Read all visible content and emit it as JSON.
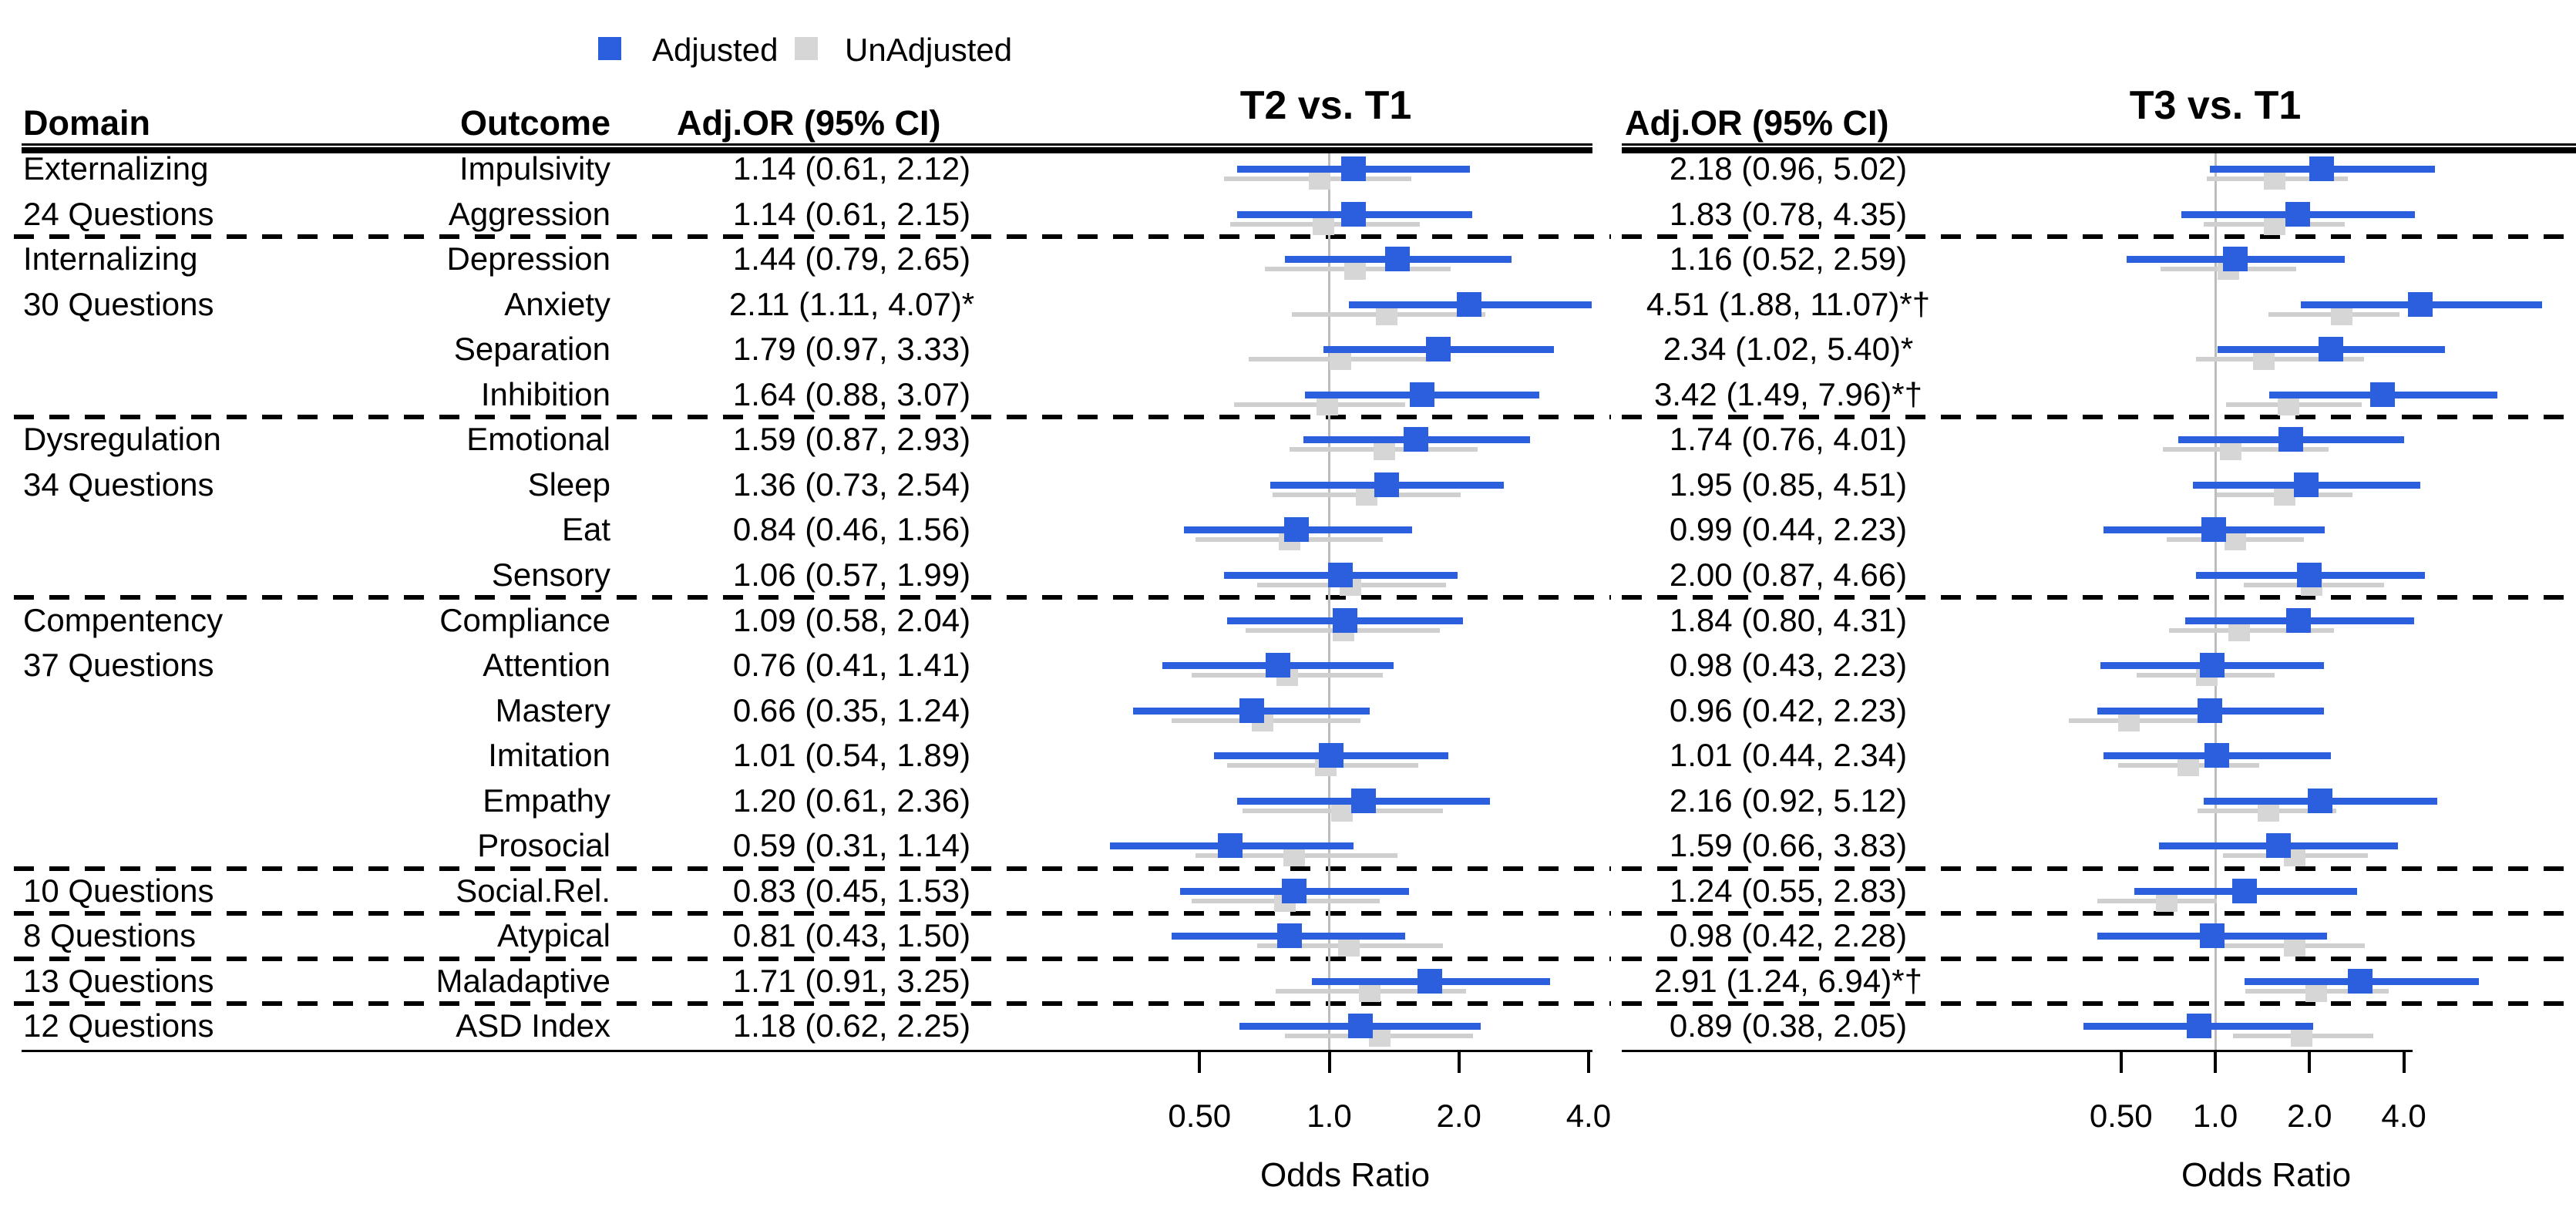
{
  "figure": {
    "legend": [
      {
        "name": "adjusted",
        "label": "Adjusted",
        "color": "#2b5fde"
      },
      {
        "name": "unadjusted",
        "label": "UnAdjusted",
        "color": "#d6d6d6"
      }
    ],
    "headers": {
      "domain": "Domain",
      "outcome": "Outcome",
      "or_left": "Adj.OR (95% CI)",
      "or_right": "Adj.OR (95% CI)",
      "panel_t2": "T2 vs. T1",
      "panel_t3": "T3 vs. T1"
    }
  },
  "chart_data": {
    "type": "forest",
    "scale": "log2",
    "axis": {
      "label": "Odds Ratio",
      "ticks": [
        0.5,
        1.0,
        2.0,
        4.0
      ],
      "tick_labels": [
        "0.50",
        "1.0",
        "2.0",
        "4.0"
      ],
      "reference_line": 1.0
    },
    "panels": [
      {
        "id": "t2",
        "title": "T2 vs. T1"
      },
      {
        "id": "t3",
        "title": "T3 vs. T1"
      }
    ],
    "series": [
      {
        "name": "Adjusted",
        "color": "#2b5fde"
      },
      {
        "name": "UnAdjusted",
        "color": "#d6d6d6",
        "note": "values estimated from marker positions; not labeled in figure"
      }
    ],
    "colors": {
      "adjusted": "#2b5fde",
      "unadjusted_square": "#d6d6d6",
      "unadjusted_line": "#cfcfcf",
      "reference_line": "#bdbdbd"
    },
    "rows": [
      {
        "domain": "Externalizing",
        "outcome": "Impulsivity",
        "separator_after": false,
        "t2": {
          "label": "1.14 (0.61, 2.12)",
          "adjusted": {
            "or": 1.14,
            "lo": 0.61,
            "hi": 2.12
          },
          "unadjusted_est": {
            "or": 0.95,
            "lo": 0.57,
            "hi": 1.55
          }
        },
        "t3": {
          "label": "2.18 (0.96, 5.02)",
          "adjusted": {
            "or": 2.18,
            "lo": 0.96,
            "hi": 5.02
          },
          "unadjusted_est": {
            "or": 1.55,
            "lo": 0.94,
            "hi": 2.65
          }
        }
      },
      {
        "domain": "24 Questions",
        "outcome": "Aggression",
        "separator_after": true,
        "t2": {
          "label": "1.14 (0.61, 2.15)",
          "adjusted": {
            "or": 1.14,
            "lo": 0.61,
            "hi": 2.15
          },
          "unadjusted_est": {
            "or": 0.97,
            "lo": 0.59,
            "hi": 1.62
          }
        },
        "t3": {
          "label": "1.83 (0.78, 4.35)",
          "adjusted": {
            "or": 1.83,
            "lo": 0.78,
            "hi": 4.35
          },
          "unadjusted_est": {
            "or": 1.55,
            "lo": 0.92,
            "hi": 2.59
          }
        }
      },
      {
        "domain": "Internalizing",
        "outcome": "Depression",
        "separator_after": false,
        "t2": {
          "label": "1.44 (0.79, 2.65)",
          "adjusted": {
            "or": 1.44,
            "lo": 0.79,
            "hi": 2.65
          },
          "unadjusted_est": {
            "or": 1.15,
            "lo": 0.71,
            "hi": 1.91
          }
        },
        "t3": {
          "label": "1.16 (0.52, 2.59)",
          "adjusted": {
            "or": 1.16,
            "lo": 0.52,
            "hi": 2.59
          },
          "unadjusted_est": {
            "or": 1.1,
            "lo": 0.67,
            "hi": 1.81
          }
        }
      },
      {
        "domain": "30 Questions",
        "outcome": "Anxiety",
        "separator_after": false,
        "t2": {
          "label": "2.11 (1.11, 4.07)*",
          "adjusted": {
            "or": 2.11,
            "lo": 1.11,
            "hi": 4.07
          },
          "unadjusted_est": {
            "or": 1.36,
            "lo": 0.82,
            "hi": 2.3
          }
        },
        "t3": {
          "label": "4.51 (1.88, 11.07)*†",
          "adjusted": {
            "or": 4.51,
            "lo": 1.88,
            "hi": 11.07
          },
          "unadjusted_est": {
            "or": 2.53,
            "lo": 1.48,
            "hi": 3.88
          }
        }
      },
      {
        "domain": "",
        "outcome": "Separation",
        "separator_after": false,
        "t2": {
          "label": "1.79 (0.97, 3.33)",
          "adjusted": {
            "or": 1.79,
            "lo": 0.97,
            "hi": 3.33
          },
          "unadjusted_est": {
            "or": 1.06,
            "lo": 0.65,
            "hi": 1.78
          }
        },
        "t3": {
          "label": "2.34 (1.02, 5.40)*",
          "adjusted": {
            "or": 2.34,
            "lo": 1.02,
            "hi": 5.4
          },
          "unadjusted_est": {
            "or": 1.43,
            "lo": 0.87,
            "hi": 2.98
          }
        }
      },
      {
        "domain": "",
        "outcome": "Inhibition",
        "separator_after": true,
        "t2": {
          "label": "1.64 (0.88, 3.07)",
          "adjusted": {
            "or": 1.64,
            "lo": 0.88,
            "hi": 3.07
          },
          "unadjusted_est": {
            "or": 0.99,
            "lo": 0.6,
            "hi": 1.5
          }
        },
        "t3": {
          "label": "3.42 (1.49, 7.96)*†",
          "adjusted": {
            "or": 3.42,
            "lo": 1.49,
            "hi": 7.96
          },
          "unadjusted_est": {
            "or": 1.71,
            "lo": 1.08,
            "hi": 2.94
          }
        }
      },
      {
        "domain": "Dysregulation",
        "outcome": "Emotional",
        "separator_after": false,
        "t2": {
          "label": "1.59 (0.87, 2.93)",
          "adjusted": {
            "or": 1.59,
            "lo": 0.87,
            "hi": 2.93
          },
          "unadjusted_est": {
            "or": 1.34,
            "lo": 0.81,
            "hi": 2.21
          }
        },
        "t3": {
          "label": "1.74 (0.76, 4.01)",
          "adjusted": {
            "or": 1.74,
            "lo": 0.76,
            "hi": 4.01
          },
          "unadjusted_est": {
            "or": 1.12,
            "lo": 0.68,
            "hi": 2.3
          }
        }
      },
      {
        "domain": "34 Questions",
        "outcome": "Sleep",
        "separator_after": false,
        "t2": {
          "label": "1.36 (0.73, 2.54)",
          "adjusted": {
            "or": 1.36,
            "lo": 0.73,
            "hi": 2.54
          },
          "unadjusted_est": {
            "or": 1.22,
            "lo": 0.74,
            "hi": 2.02
          }
        },
        "t3": {
          "label": "1.95 (0.85, 4.51)",
          "adjusted": {
            "or": 1.95,
            "lo": 0.85,
            "hi": 4.51
          },
          "unadjusted_est": {
            "or": 1.67,
            "lo": 1.01,
            "hi": 2.74
          }
        }
      },
      {
        "domain": "",
        "outcome": "Eat",
        "separator_after": false,
        "t2": {
          "label": "0.84 (0.46, 1.56)",
          "adjusted": {
            "or": 0.84,
            "lo": 0.46,
            "hi": 1.56
          },
          "unadjusted_est": {
            "or": 0.81,
            "lo": 0.49,
            "hi": 1.33
          }
        },
        "t3": {
          "label": "0.99 (0.44, 2.23)",
          "adjusted": {
            "or": 0.99,
            "lo": 0.44,
            "hi": 2.23
          },
          "unadjusted_est": {
            "or": 1.16,
            "lo": 0.7,
            "hi": 1.92
          }
        }
      },
      {
        "domain": "",
        "outcome": "Sensory",
        "separator_after": true,
        "t2": {
          "label": "1.06 (0.57, 1.99)",
          "adjusted": {
            "or": 1.06,
            "lo": 0.57,
            "hi": 1.99
          },
          "unadjusted_est": {
            "or": 1.12,
            "lo": 0.68,
            "hi": 1.87
          }
        },
        "t3": {
          "label": "2.00 (0.87, 4.66)",
          "adjusted": {
            "or": 2.0,
            "lo": 0.87,
            "hi": 4.66
          },
          "unadjusted_est": {
            "or": 2.03,
            "lo": 1.23,
            "hi": 3.46
          }
        }
      },
      {
        "domain": "Compentency",
        "outcome": "Compliance",
        "separator_after": false,
        "t2": {
          "label": "1.09 (0.58, 2.04)",
          "adjusted": {
            "or": 1.09,
            "lo": 0.58,
            "hi": 2.04
          },
          "unadjusted_est": {
            "or": 1.08,
            "lo": 0.64,
            "hi": 1.81
          }
        },
        "t3": {
          "label": "1.84 (0.80, 4.31)",
          "adjusted": {
            "or": 1.84,
            "lo": 0.8,
            "hi": 4.31
          },
          "unadjusted_est": {
            "or": 1.19,
            "lo": 0.71,
            "hi": 2.4
          }
        }
      },
      {
        "domain": "37 Questions",
        "outcome": "Attention",
        "separator_after": false,
        "t2": {
          "label": "0.76 (0.41, 1.41)",
          "adjusted": {
            "or": 0.76,
            "lo": 0.41,
            "hi": 1.41
          },
          "unadjusted_est": {
            "or": 0.8,
            "lo": 0.48,
            "hi": 1.33
          }
        },
        "t3": {
          "label": "0.98 (0.43, 2.23)",
          "adjusted": {
            "or": 0.98,
            "lo": 0.43,
            "hi": 2.23
          },
          "unadjusted_est": {
            "or": 0.94,
            "lo": 0.56,
            "hi": 1.55
          }
        }
      },
      {
        "domain": "",
        "outcome": "Mastery",
        "separator_after": false,
        "t2": {
          "label": "0.66 (0.35, 1.24)",
          "adjusted": {
            "or": 0.66,
            "lo": 0.35,
            "hi": 1.24
          },
          "unadjusted_est": {
            "or": 0.7,
            "lo": 0.43,
            "hi": 1.18
          }
        },
        "t3": {
          "label": "0.96 (0.42, 2.23)",
          "adjusted": {
            "or": 0.96,
            "lo": 0.42,
            "hi": 2.23
          },
          "unadjusted_est": {
            "or": 0.53,
            "lo": 0.34,
            "hi": 0.88
          }
        }
      },
      {
        "domain": "",
        "outcome": "Imitation",
        "separator_after": false,
        "t2": {
          "label": "1.01 (0.54, 1.89)",
          "adjusted": {
            "or": 1.01,
            "lo": 0.54,
            "hi": 1.89
          },
          "unadjusted_est": {
            "or": 0.98,
            "lo": 0.58,
            "hi": 1.61
          }
        },
        "t3": {
          "label": "1.01 (0.44, 2.34)",
          "adjusted": {
            "or": 1.01,
            "lo": 0.44,
            "hi": 2.34
          },
          "unadjusted_est": {
            "or": 0.82,
            "lo": 0.49,
            "hi": 1.38
          }
        }
      },
      {
        "domain": "",
        "outcome": "Empathy",
        "separator_after": false,
        "t2": {
          "label": "1.20 (0.61, 2.36)",
          "adjusted": {
            "or": 1.2,
            "lo": 0.61,
            "hi": 2.36
          },
          "unadjusted_est": {
            "or": 1.07,
            "lo": 0.63,
            "hi": 1.84
          }
        },
        "t3": {
          "label": "2.16 (0.92, 5.12)",
          "adjusted": {
            "or": 2.16,
            "lo": 0.92,
            "hi": 5.12
          },
          "unadjusted_est": {
            "or": 1.48,
            "lo": 0.88,
            "hi": 2.44
          }
        }
      },
      {
        "domain": "",
        "outcome": "Prosocial",
        "separator_after": true,
        "t2": {
          "label": "0.59 (0.31, 1.14)",
          "adjusted": {
            "or": 0.59,
            "lo": 0.31,
            "hi": 1.14
          },
          "unadjusted_est": {
            "or": 0.83,
            "lo": 0.49,
            "hi": 1.44
          }
        },
        "t3": {
          "label": "1.59 (0.66, 3.83)",
          "adjusted": {
            "or": 1.59,
            "lo": 0.66,
            "hi": 3.83
          },
          "unadjusted_est": {
            "or": 1.79,
            "lo": 1.06,
            "hi": 3.08
          }
        }
      },
      {
        "domain": "10 Questions",
        "outcome": "Social.Rel.",
        "separator_after": true,
        "t2": {
          "label": "0.83 (0.45, 1.53)",
          "adjusted": {
            "or": 0.83,
            "lo": 0.45,
            "hi": 1.53
          },
          "unadjusted_est": {
            "or": 0.79,
            "lo": 0.48,
            "hi": 1.31
          }
        },
        "t3": {
          "label": "1.24 (0.55, 2.83)",
          "adjusted": {
            "or": 1.24,
            "lo": 0.55,
            "hi": 2.83
          },
          "unadjusted_est": {
            "or": 0.7,
            "lo": 0.42,
            "hi": 1.01
          }
        }
      },
      {
        "domain": "8 Questions",
        "outcome": "Atypical",
        "separator_after": true,
        "t2": {
          "label": "0.81 (0.43, 1.50)",
          "adjusted": {
            "or": 0.81,
            "lo": 0.43,
            "hi": 1.5
          },
          "unadjusted_est": {
            "or": 1.11,
            "lo": 0.68,
            "hi": 1.84
          }
        },
        "t3": {
          "label": "0.98 (0.42, 2.28)",
          "adjusted": {
            "or": 0.98,
            "lo": 0.42,
            "hi": 2.28
          },
          "unadjusted_est": {
            "or": 1.79,
            "lo": 1.07,
            "hi": 3.0
          }
        }
      },
      {
        "domain": "13 Questions",
        "outcome": "Maladaptive",
        "separator_after": true,
        "t2": {
          "label": "1.71 (0.91, 3.25)",
          "adjusted": {
            "or": 1.71,
            "lo": 0.91,
            "hi": 3.25
          },
          "unadjusted_est": {
            "or": 1.24,
            "lo": 0.75,
            "hi": 2.08
          }
        },
        "t3": {
          "label": "2.91 (1.24, 6.94)*†",
          "adjusted": {
            "or": 2.91,
            "lo": 1.24,
            "hi": 6.94
          },
          "unadjusted_est": {
            "or": 2.1,
            "lo": 1.25,
            "hi": 3.58
          }
        }
      },
      {
        "domain": "12 Questions",
        "outcome": "ASD Index",
        "separator_after": false,
        "t2": {
          "label": "1.18 (0.62, 2.25)",
          "adjusted": {
            "or": 1.18,
            "lo": 0.62,
            "hi": 2.25
          },
          "unadjusted_est": {
            "or": 1.31,
            "lo": 0.79,
            "hi": 2.16
          }
        },
        "t3": {
          "label": "0.89 (0.38, 2.05)",
          "adjusted": {
            "or": 0.89,
            "lo": 0.38,
            "hi": 2.05
          },
          "unadjusted_est": {
            "or": 1.89,
            "lo": 1.14,
            "hi": 3.19
          }
        }
      }
    ]
  }
}
